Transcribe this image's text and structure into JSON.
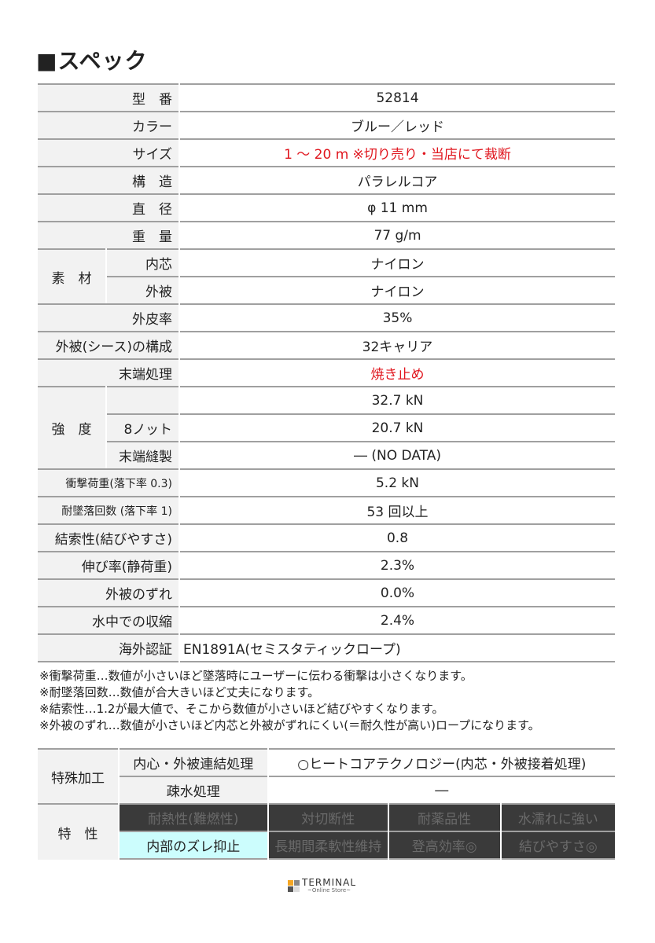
{
  "title": "■スペック",
  "spec": [
    {
      "label": "型　番",
      "value": "52814"
    },
    {
      "label": "カラー",
      "value": "ブルー／レッド"
    },
    {
      "label": "サイズ",
      "value": "1 ～ 20 m ※切り売り・当店にて裁断",
      "red": true
    },
    {
      "label": "構　造",
      "value": "パラレルコア"
    },
    {
      "label": "直　径",
      "value": "φ 11 mm"
    },
    {
      "label": "重　量",
      "value": "77 g/m"
    },
    {
      "group": "素　材",
      "rows": [
        {
          "label": "内芯",
          "value": "ナイロン"
        },
        {
          "label": "外被",
          "value": "ナイロン"
        }
      ]
    },
    {
      "label": "外皮率",
      "value": "35%"
    },
    {
      "label": "外被(シース)の構成",
      "value": "32キャリア"
    },
    {
      "label": "末端処理",
      "value": "焼き止め",
      "red": true
    },
    {
      "group": "強　度",
      "rows": [
        {
          "label": "",
          "value": "32.7 kN"
        },
        {
          "label": "8ノット",
          "value": "20.7 kN"
        },
        {
          "label": "末端縫製",
          "value": "― (NO DATA)"
        }
      ]
    },
    {
      "label": "衝撃荷重(落下率 0.3)",
      "value": "5.2 kN",
      "small": true
    },
    {
      "label": "耐墜落回数 (落下率 1)",
      "value": "53 回以上",
      "small": true
    },
    {
      "label": "結索性(結びやすさ)",
      "value": "0.8"
    },
    {
      "label": "伸び率(静荷重)",
      "value": "2.3%"
    },
    {
      "label": "外被のずれ",
      "value": "0.0%"
    },
    {
      "label": "水中での収縮",
      "value": "2.4%"
    },
    {
      "label": "海外認証",
      "value": "EN1891A(セミスタティックロープ)",
      "left": true
    }
  ],
  "notes": [
    "※衝撃荷重…数値が小さいほど墜落時にユーザーに伝わる衝撃は小さくなります。",
    "※耐墜落回数…数値が合大きいほど丈夫になります。",
    "※結索性…1.2が最大値で、そこから数値が小さいほど結びやすくなります。",
    "※外被のずれ…数値が小さいほど内芯と外被がずれにくい(＝耐久性が高い)ロープになります。"
  ],
  "special": {
    "label": "特殊加工",
    "rows": [
      {
        "label": "内心・外被連結処理",
        "value": "○ヒートコアテクノロジー(内芯・外被接着処理)"
      },
      {
        "label": "疎水処理",
        "value": "―"
      }
    ]
  },
  "features": {
    "label": "特　性",
    "items": [
      {
        "label": "耐熱性(難燃性)",
        "active": false
      },
      {
        "label": "対切断性",
        "active": false
      },
      {
        "label": "耐薬品性",
        "active": false
      },
      {
        "label": "水濡れに強い",
        "active": false
      },
      {
        "label": "内部のズレ抑止",
        "active": true
      },
      {
        "label": "長期間柔軟性維持",
        "active": false
      },
      {
        "label": "登高効率◎",
        "active": false
      },
      {
        "label": "結びやすさ◎",
        "active": false
      }
    ],
    "colors": {
      "active": "#ccfdfd",
      "inactive": "#3a3a3a"
    }
  },
  "logo": {
    "name": "TERMINAL",
    "sub": "~Online Store~",
    "colors": [
      "#f5a623",
      "#888888",
      "#555555",
      "#dddddd"
    ]
  }
}
